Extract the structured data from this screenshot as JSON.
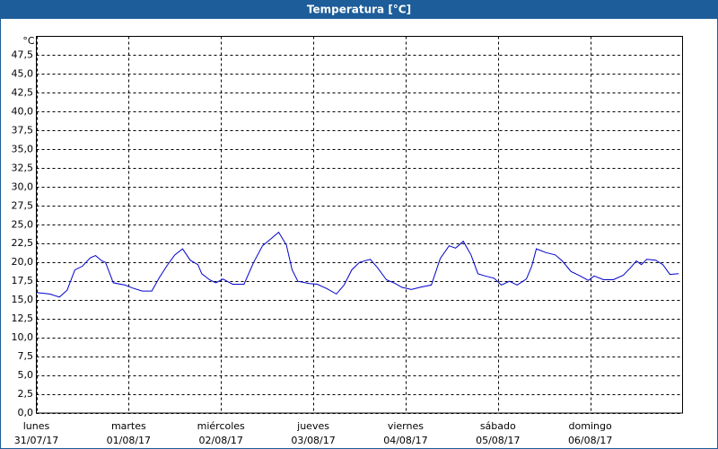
{
  "chart_data": {
    "type": "line",
    "title": "Temperatura [°C]",
    "y_unit": "°C",
    "x": [
      0,
      3.5,
      6,
      8,
      10,
      12,
      14,
      15.4,
      17,
      18,
      20,
      23,
      25,
      27.5,
      30,
      32,
      34,
      36,
      38,
      40,
      42,
      43,
      45,
      46.7,
      48.5,
      51,
      54,
      56.5,
      58.8,
      60.7,
      63,
      65,
      66.5,
      68,
      71,
      73,
      75.6,
      78,
      80,
      82,
      84,
      86.8,
      88.7,
      91,
      93.3,
      95,
      97.5,
      99.8,
      102.7,
      105,
      107.3,
      109,
      111,
      113,
      114.8,
      116.7,
      119,
      120.9,
      123,
      125,
      127.4,
      128.8,
      130,
      132.5,
      134.9,
      136.7,
      139,
      141.4,
      143.5,
      145,
      147.5,
      150,
      152.6,
      154.5,
      156,
      157.3,
      158.7,
      161,
      162.9,
      164.7,
      167
    ],
    "series": [
      {
        "color": "#0000cc",
        "values": [
          16.0,
          15.8,
          15.4,
          16.3,
          19.0,
          19.5,
          20.6,
          20.9,
          20.2,
          20.0,
          17.3,
          17.0,
          16.6,
          16.2,
          16.2,
          18.0,
          19.6,
          21.0,
          21.8,
          20.3,
          19.7,
          18.5,
          17.7,
          17.3,
          17.8,
          17.1,
          17.1,
          20.0,
          22.2,
          23.0,
          24.0,
          22.3,
          19.0,
          17.5,
          17.2,
          17.1,
          16.5,
          15.8,
          17.0,
          19.0,
          20.0,
          20.4,
          19.3,
          17.7,
          17.2,
          16.7,
          16.4,
          16.7,
          17.0,
          20.5,
          22.2,
          21.9,
          22.8,
          21.0,
          18.5,
          18.2,
          17.9,
          17.0,
          17.5,
          17.0,
          17.8,
          19.5,
          21.8,
          21.3,
          21.0,
          20.2,
          18.8,
          18.2,
          17.6,
          18.2,
          17.7,
          17.7,
          18.3,
          19.3,
          20.2,
          19.7,
          20.4,
          20.3,
          19.7,
          18.4,
          18.5
        ]
      }
    ],
    "xlim": [
      0,
      168
    ],
    "xticks": [
      {
        "value": 0,
        "label": [
          "lunes",
          "31/07/17"
        ]
      },
      {
        "value": 24,
        "label": [
          "martes",
          "01/08/17"
        ]
      },
      {
        "value": 48,
        "label": [
          "miércoles",
          "02/08/17"
        ]
      },
      {
        "value": 72,
        "label": [
          "jueves",
          "03/08/17"
        ]
      },
      {
        "value": 96,
        "label": [
          "viernes",
          "04/08/17"
        ]
      },
      {
        "value": 120,
        "label": [
          "sábado",
          "05/08/17"
        ]
      },
      {
        "value": 144,
        "label": [
          "domingo",
          "06/08/17"
        ]
      }
    ],
    "ylim": [
      0,
      50
    ],
    "yticks": [
      {
        "value": 0,
        "label": "0,0"
      },
      {
        "value": 2.5,
        "label": "2,5"
      },
      {
        "value": 5,
        "label": "5,0"
      },
      {
        "value": 7.5,
        "label": "7,5"
      },
      {
        "value": 10,
        "label": "10,0"
      },
      {
        "value": 12.5,
        "label": "12,5"
      },
      {
        "value": 15,
        "label": "15,0"
      },
      {
        "value": 17.5,
        "label": "17,5"
      },
      {
        "value": 20,
        "label": "20,0"
      },
      {
        "value": 22.5,
        "label": "22,5"
      },
      {
        "value": 25,
        "label": "25,0"
      },
      {
        "value": 27.5,
        "label": "27,5"
      },
      {
        "value": 30,
        "label": "30,0"
      },
      {
        "value": 32.5,
        "label": "32,5"
      },
      {
        "value": 35,
        "label": "35,0"
      },
      {
        "value": 37.5,
        "label": "37,5"
      },
      {
        "value": 40,
        "label": "40,0"
      },
      {
        "value": 42.5,
        "label": "42,5"
      },
      {
        "value": 45,
        "label": "45,0"
      },
      {
        "value": 47.5,
        "label": "47,5"
      }
    ],
    "grid": true
  }
}
